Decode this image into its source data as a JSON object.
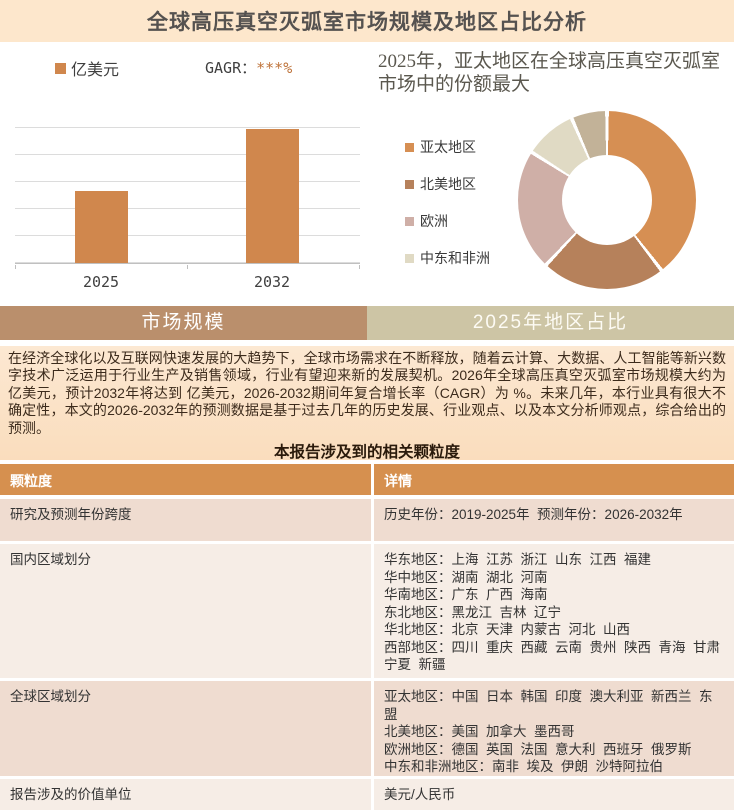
{
  "page": {
    "title": "全球高压真空灭弧室市场规模及地区占比分析"
  },
  "colors": {
    "title_bar_bg": "#FDE7CC",
    "bar_fill": "#D0874D",
    "cagr_stars": "#BE7239",
    "band_left_bg": "#BA8F6C",
    "band_right_bg": "#CDC5A5",
    "summary_bg": "#FBE2C7",
    "table_header_bg": "#D6904F",
    "row_odd_bg": "#EFDCD0",
    "row_even_bg": "#F6EDE6",
    "donut_colors": [
      "#D68F53",
      "#B6815B",
      "#CFAFA7",
      "#E0DAC4",
      "#C2B298"
    ]
  },
  "bar_section": {
    "header": "市场规模",
    "legend_label": "亿美元",
    "cagr_label": "GAGR：",
    "cagr_value": "***%"
  },
  "donut_section": {
    "header": "2025年地区占比",
    "headline": "2025年，亚太地区在全球高压真空灭弧室市场中的份额最大"
  },
  "chart_data": [
    {
      "type": "bar",
      "title": "",
      "unit": "亿美元",
      "categories": [
        "2025",
        "2032"
      ],
      "values": [
        2.7,
        5.0
      ],
      "values_masked": true,
      "note": "数值在图中以***遮盖，高度按网格线估算（网格单位）",
      "ylim": [
        0,
        6
      ],
      "grid": true,
      "bar_color": "#D0874D",
      "legend_position": "top-left"
    },
    {
      "type": "pie",
      "donut": true,
      "title": "2025年地区占比",
      "legend_position": "left",
      "segments": [
        {
          "label": "亚太地区",
          "pct": 39.5,
          "color": "#D68F53"
        },
        {
          "label": "北美地区",
          "pct": 22.5,
          "color": "#B6815B"
        },
        {
          "label": "欧洲",
          "pct": 22.0,
          "color": "#CFAFA7"
        },
        {
          "label": "中东和非洲",
          "pct": 9.5,
          "color": "#E0DAC4"
        },
        {
          "label": "",
          "pct": 6.5,
          "color": "#C2B298"
        }
      ]
    }
  ],
  "paragraph": "在经济全球化以及互联网快速发展的大趋势下，全球市场需求在不断释放，随着云计算、大数据、人工智能等新兴数字技术广泛运用于行业生产及销售领域，行业有望迎来新的发展契机。2026年全球高压真空灭弧室市场规模大约为 亿美元，预计2032年将达到 亿美元，2026-2032期间年复合增长率（CAGR）为 %。未来几年，本行业具有很大不确定性，本文的2026-2032年的预测数据是基于过去几年的历史发展、行业观点、以及本文分析师观点，综合给出的预测。",
  "table": {
    "section_title": "本报告涉及到的相关颗粒度",
    "headers": [
      "颗粒度",
      "详情"
    ],
    "rows": [
      {
        "label": "研究及预测年份跨度",
        "detail": "历史年份：2019-2025年  预测年份：2026-2032年"
      },
      {
        "label": "国内区域划分",
        "detail": "华东地区：上海  江苏  浙江  山东  江西  福建\n华中地区：湖南  湖北  河南\n华南地区：广东  广西  海南\n东北地区：黑龙江  吉林  辽宁\n华北地区：北京  天津  内蒙古  河北  山西\n西部地区：四川  重庆  西藏  云南  贵州  陕西  青海  甘肃\n宁夏  新疆"
      },
      {
        "label": "全球区域划分",
        "detail": "亚太地区：中国  日本  韩国  印度  澳大利亚  新西兰  东盟\n北美地区：美国  加拿大  墨西哥\n欧洲地区：德国  英国  法国  意大利  西班牙  俄罗斯\n中东和非洲地区：南非  埃及  伊朗  沙特阿拉伯"
      },
      {
        "label": "报告涉及的价值单位",
        "detail": "美元/人民币"
      }
    ]
  }
}
